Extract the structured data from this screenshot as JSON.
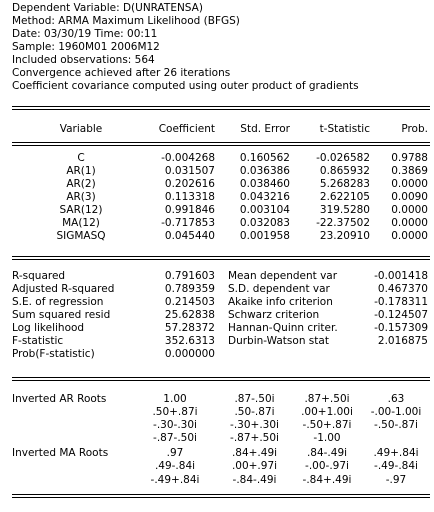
{
  "header": {
    "lines": [
      "Dependent Variable: D(UNRATENSA)",
      "Method: ARMA Maximum Likelihood (BFGS)",
      "Date: 03/30/19   Time: 00:11",
      "Sample: 1960M01 2006M12",
      "Included observations: 564",
      "Convergence achieved after 26 iterations",
      "Coefficient covariance computed using outer product of gradients"
    ]
  },
  "coef_table": {
    "columns": [
      "Variable",
      "Coefficient",
      "Std. Error",
      "t-Statistic",
      "Prob."
    ],
    "rows": [
      [
        "C",
        "-0.004268",
        "0.160562",
        "-0.026582",
        "0.9788"
      ],
      [
        "AR(1)",
        "0.031507",
        "0.036386",
        "0.865932",
        "0.3869"
      ],
      [
        "AR(2)",
        "0.202616",
        "0.038460",
        "5.268283",
        "0.0000"
      ],
      [
        "AR(3)",
        "0.113318",
        "0.043216",
        "2.622105",
        "0.0090"
      ],
      [
        "SAR(12)",
        "0.991846",
        "0.003104",
        "319.5280",
        "0.0000"
      ],
      [
        "MA(12)",
        "-0.717853",
        "0.032083",
        "-22.37502",
        "0.0000"
      ],
      [
        "SIGMASQ",
        "0.045440",
        "0.001958",
        "23.20910",
        "0.0000"
      ]
    ]
  },
  "stats": [
    [
      "R-squared",
      "0.791603",
      "Mean dependent var",
      "-0.001418"
    ],
    [
      "Adjusted R-squared",
      "0.789359",
      "S.D. dependent var",
      "0.467370"
    ],
    [
      "S.E. of regression",
      "0.214503",
      "Akaike info criterion",
      "-0.178311"
    ],
    [
      "Sum squared resid",
      "25.62838",
      "Schwarz criterion",
      "-0.124507"
    ],
    [
      "Log likelihood",
      "57.28372",
      "Hannan-Quinn criter.",
      "-0.157309"
    ],
    [
      "F-statistic",
      "352.6313",
      "Durbin-Watson stat",
      "2.016875"
    ],
    [
      "Prob(F-statistic)",
      "0.000000",
      "",
      ""
    ]
  ],
  "roots": {
    "ar_label": "Inverted AR Roots",
    "ar": [
      [
        "1.00",
        ".87-.50i",
        ".87+.50i",
        ".63"
      ],
      [
        ".50+.87i",
        ".50-.87i",
        ".00+1.00i",
        "-.00-1.00i"
      ],
      [
        "-.30-.30i",
        "-.30+.30i",
        "-.50+.87i",
        "-.50-.87i"
      ],
      [
        "-.87-.50i",
        "-.87+.50i",
        "-1.00",
        ""
      ]
    ],
    "ma_label": "Inverted MA Roots",
    "ma": [
      [
        ".97",
        ".84+.49i",
        ".84-.49i",
        ".49+.84i"
      ],
      [
        ".49-.84i",
        ".00+.97i",
        "-.00-.97i",
        "-.49-.84i"
      ],
      [
        "-.49+.84i",
        "-.84-.49i",
        "-.84+.49i",
        "-.97"
      ]
    ]
  }
}
